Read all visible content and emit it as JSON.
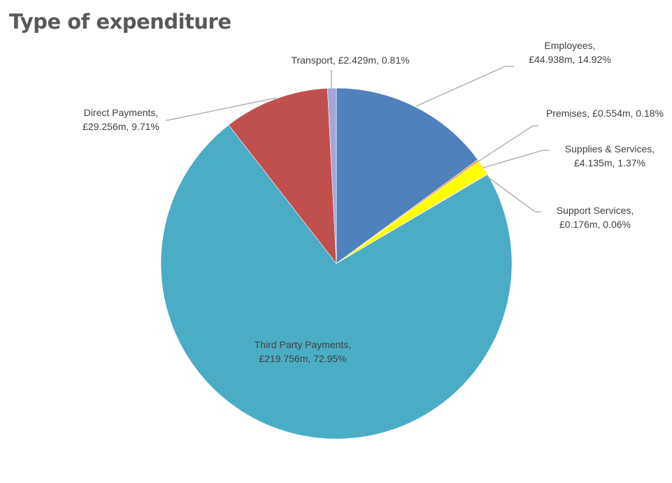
{
  "chart_data": {
    "type": "pie",
    "title": "Type of expenditure",
    "start_angle_deg": 0,
    "direction": "clockwise",
    "legend": "none",
    "slices": [
      {
        "name": "Employees",
        "value": 44.938,
        "percent": 14.92,
        "color": "#4F81BD",
        "label_lines": [
          "Employees,",
          "£44.938m, 14.92%"
        ]
      },
      {
        "name": "Premises",
        "value": 0.554,
        "percent": 0.18,
        "color": "#F79646",
        "label_lines": [
          "Premises, £0.554m, 0.18%"
        ]
      },
      {
        "name": "Supplies & Services",
        "value": 4.135,
        "percent": 1.37,
        "color": "#FFFF00",
        "label_lines": [
          "Supplies & Services,",
          "£4.135m, 1.37%"
        ]
      },
      {
        "name": "Support Services",
        "value": 0.176,
        "percent": 0.06,
        "color": "#E36C09",
        "label_lines": [
          "Support Services,",
          "£0.176m, 0.06%"
        ]
      },
      {
        "name": "Third Party Payments",
        "value": 219.756,
        "percent": 72.95,
        "color": "#4BACC6",
        "label_lines": [
          "Third Party Payments,",
          "£219.756m, 72.95%"
        ]
      },
      {
        "name": "Direct Payments",
        "value": 29.256,
        "percent": 9.71,
        "color": "#C0504D",
        "label_lines": [
          "Direct Payments,",
          "£29.256m, 9.71%"
        ]
      },
      {
        "name": "Transport",
        "value": 2.429,
        "percent": 0.81,
        "color": "#A5A5D9",
        "label_lines": [
          "Transport, £2.429m, 0.81%"
        ]
      }
    ]
  }
}
